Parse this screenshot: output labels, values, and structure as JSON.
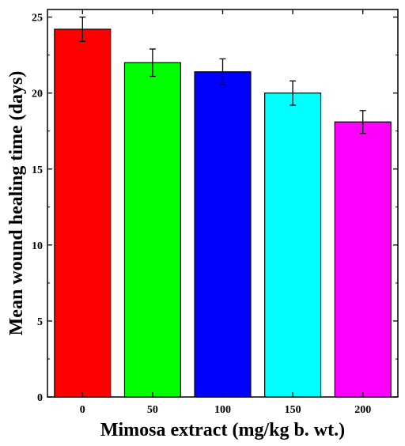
{
  "chart_data": {
    "type": "bar",
    "title": "",
    "xlabel": "Mimosa extract (mg/kg b. wt.)",
    "ylabel": "Mean wound healing time (days)",
    "categories": [
      "0",
      "50",
      "100",
      "150",
      "200"
    ],
    "values": [
      24.2,
      22.0,
      21.4,
      20.0,
      18.1
    ],
    "errors": [
      0.8,
      0.9,
      0.85,
      0.8,
      0.75
    ],
    "colors": [
      "#ff0000",
      "#00ff00",
      "#0000ff",
      "#00ffff",
      "#ff00ff"
    ],
    "ylim": [
      0,
      25.5
    ],
    "yticks": [
      0,
      5,
      10,
      15,
      20,
      25
    ],
    "grid": false,
    "legend": "none"
  }
}
